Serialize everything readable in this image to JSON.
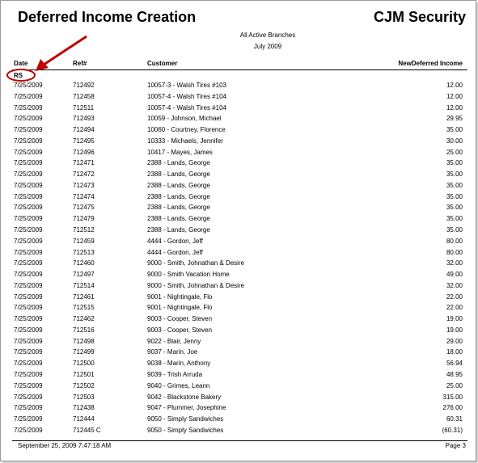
{
  "header": {
    "title": "Deferred Income Creation",
    "company": "CJM Security",
    "subtitle": "All Active Branches",
    "period": "July 2009"
  },
  "table": {
    "columns": [
      "Date",
      "Ref#",
      "Customer",
      "NewDeferred Income"
    ],
    "group": "RS",
    "rows": [
      [
        "7/25/2009",
        "712492",
        "10057-3 - Walsh Tires #103",
        "12.00"
      ],
      [
        "7/25/2009",
        "712458",
        "10057-4 - Walsh Tires #104",
        "12.00"
      ],
      [
        "7/25/2009",
        "712511",
        "10057-4 - Walsh Tires #104",
        "12.00"
      ],
      [
        "7/25/2009",
        "712493",
        "10059 - Johnson, Michael",
        "29.95"
      ],
      [
        "7/25/2009",
        "712494",
        "10060 - Courtney, Florence",
        "35.00"
      ],
      [
        "7/25/2009",
        "712495",
        "10333 - Michaels, Jennifer",
        "30.00"
      ],
      [
        "7/25/2009",
        "712496",
        "10417 - Mayes, James",
        "25.00"
      ],
      [
        "7/25/2009",
        "712471",
        "2388 - Lands, George",
        "35.00"
      ],
      [
        "7/25/2009",
        "712472",
        "2388 - Lands, George",
        "35.00"
      ],
      [
        "7/25/2009",
        "712473",
        "2388 - Lands, George",
        "35.00"
      ],
      [
        "7/25/2009",
        "712474",
        "2388 - Lands, George",
        "35.00"
      ],
      [
        "7/25/2009",
        "712475",
        "2388 - Lands, George",
        "35.00"
      ],
      [
        "7/25/2009",
        "712479",
        "2388 - Lands, George",
        "35.00"
      ],
      [
        "7/25/2009",
        "712512",
        "2388 - Lands, George",
        "35.00"
      ],
      [
        "7/25/2009",
        "712459",
        "4444 - Gordon, Jeff",
        "80.00"
      ],
      [
        "7/25/2009",
        "712513",
        "4444 - Gordon, Jeff",
        "80.00"
      ],
      [
        "7/25/2009",
        "712460",
        "9000 - Smith, Johnathan & Desire",
        "32.00"
      ],
      [
        "7/25/2009",
        "712497",
        "9000 - Smith Vacation Home",
        "49.00"
      ],
      [
        "7/25/2009",
        "712514",
        "9000 - Smith, Johnathan & Desire",
        "32.00"
      ],
      [
        "7/25/2009",
        "712461",
        "9001 - Nightingale, Flo",
        "22.00"
      ],
      [
        "7/25/2009",
        "712515",
        "9001 - Nightingale, Flo",
        "22.00"
      ],
      [
        "7/25/2009",
        "712462",
        "9003 - Cooper, Steven",
        "19.00"
      ],
      [
        "7/25/2009",
        "712516",
        "9003 - Cooper, Steven",
        "19.00"
      ],
      [
        "7/25/2009",
        "712498",
        "9022 - Blair, Jenny",
        "29.00"
      ],
      [
        "7/25/2009",
        "712499",
        "9037 - Marin, Joe",
        "18.00"
      ],
      [
        "7/25/2009",
        "712500",
        "9038 - Marin, Anthony",
        "56.94"
      ],
      [
        "7/25/2009",
        "712501",
        "9039 - Trish Arruda",
        "48.95"
      ],
      [
        "7/25/2009",
        "712502",
        "9040 - Grimes, Leann",
        "25.00"
      ],
      [
        "7/25/2009",
        "712503",
        "9042 - Blackstone Bakery",
        "315.00"
      ],
      [
        "7/25/2009",
        "712438",
        "9047 - Plummer, Josephine",
        "276.00"
      ],
      [
        "7/25/2009",
        "712444",
        "9050 - Simply Sandwiches",
        "60.31"
      ],
      [
        "7/25/2009",
        "712445 C",
        "9050 - Simply Sandwiches",
        "(60.31)"
      ]
    ]
  },
  "footer": {
    "timestamp": "September 25, 2009 7:47:18 AM",
    "page": "Page 3"
  }
}
